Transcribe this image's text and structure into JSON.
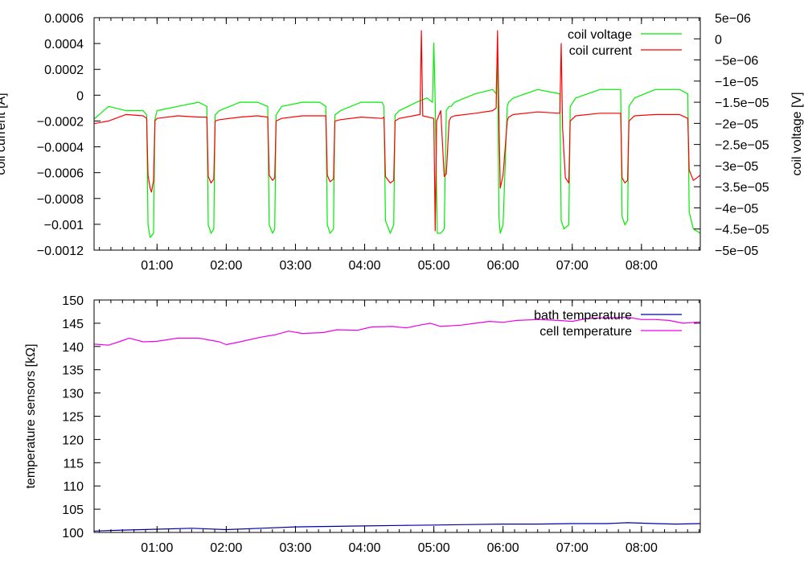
{
  "chart_data": [
    {
      "type": "line",
      "ylabel": "coil current [A]",
      "y2label": "coil voltage [V]",
      "xlim": [
        0.09,
        8.85
      ],
      "ylim": [
        -0.0012,
        0.0006
      ],
      "y2lim": [
        -5e-05,
        5e-06
      ],
      "grid": false,
      "legend_position": "top-right",
      "x_ticks": [
        1,
        2,
        3,
        4,
        5,
        6,
        7,
        8
      ],
      "x_tick_labels": [
        "01:00",
        "02:00",
        "03:00",
        "04:00",
        "05:00",
        "06:00",
        "07:00",
        "08:00"
      ],
      "y_ticks": [
        0.0006,
        0.0004,
        0.0002,
        0,
        -0.0002,
        -0.0004,
        -0.0006,
        -0.0008,
        -0.001,
        -0.0012
      ],
      "y_tick_labels": [
        "0.0006",
        "0.0004",
        "0.0002",
        "0",
        "−0.0002",
        "−0.0004",
        "−0.0006",
        "−0.0008",
        "−0.001",
        "−0.0012"
      ],
      "y2_ticks": [
        5e-06,
        0,
        -5e-06,
        -1e-05,
        -1.5e-05,
        -2e-05,
        -2.5e-05,
        -3e-05,
        -3.5e-05,
        -4e-05,
        -4.5e-05,
        -5e-05
      ],
      "y2_tick_labels": [
        "5e−06",
        "0",
        "−5e−06",
        "−1e−05",
        "−1.5e−05",
        "−2e−05",
        "−2.5e−05",
        "−3e−05",
        "−3.5e−05",
        "−4e−05",
        "−4.5e−05",
        "−5e−05"
      ],
      "series": [
        {
          "name": "coil voltage",
          "color": "#00ee00",
          "axis": "y2",
          "x": [
            0.09,
            0.3,
            0.55,
            0.8,
            0.85,
            0.87,
            0.9,
            0.95,
            0.97,
            1.0,
            1.3,
            1.6,
            1.72,
            1.74,
            1.78,
            1.82,
            1.84,
            1.9,
            2.2,
            2.45,
            2.6,
            2.62,
            2.67,
            2.7,
            2.72,
            2.8,
            3.1,
            3.35,
            3.44,
            3.46,
            3.5,
            3.55,
            3.57,
            3.65,
            3.95,
            4.25,
            4.28,
            4.3,
            4.37,
            4.42,
            4.44,
            4.5,
            4.75,
            4.9,
            4.98,
            5.0,
            5.02,
            5.05,
            5.1,
            5.15,
            5.18,
            5.22,
            5.25,
            5.3,
            5.6,
            5.85,
            5.9,
            5.92,
            5.94,
            5.96,
            6.0,
            6.06,
            6.08,
            6.15,
            6.5,
            6.82,
            6.84,
            6.88,
            6.95,
            6.97,
            7.05,
            7.4,
            7.7,
            7.72,
            7.76,
            7.8,
            7.82,
            7.9,
            8.2,
            8.55,
            8.67,
            8.69,
            8.75,
            8.85
          ],
          "values": [
            -1.9e-05,
            -1.6e-05,
            -1.7e-05,
            -1.7e-05,
            -1.8e-05,
            -4.4e-05,
            -4.7e-05,
            -4.6e-05,
            -1.9e-05,
            -1.7e-05,
            -1.6e-05,
            -1.5e-05,
            -1.6e-05,
            -4.4e-05,
            -4.6e-05,
            -4.5e-05,
            -1.8e-05,
            -1.7e-05,
            -1.5e-05,
            -1.5e-05,
            -1.6e-05,
            -4.4e-05,
            -4.6e-05,
            -4.5e-05,
            -1.8e-05,
            -1.6e-05,
            -1.5e-05,
            -1.5e-05,
            -1.6e-05,
            -4.4e-05,
            -4.6e-05,
            -4.5e-05,
            -1.8e-05,
            -1.7e-05,
            -1.5e-05,
            -1.5e-05,
            -1.6e-05,
            -4.3e-05,
            -4.6e-05,
            -4.4e-05,
            -1.8e-05,
            -1.7e-05,
            -1.5e-05,
            -1.4e-05,
            -1.5e-05,
            -1e-06,
            -1.5e-05,
            -4.6e-05,
            -4.6e-05,
            -4.5e-05,
            -1.7e-05,
            -1.6e-05,
            -1.6e-05,
            -1.5e-05,
            -1.3e-05,
            -1.2e-05,
            -1.3e-05,
            -2e-06,
            -4.2e-05,
            -4.6e-05,
            -4.4e-05,
            -1.6e-05,
            -1.5e-05,
            -1.4e-05,
            -1.2e-05,
            -1.3e-05,
            -4.3e-05,
            -4.5e-05,
            -4.4e-05,
            -1.6e-05,
            -1.4e-05,
            -1.2e-05,
            -1.2e-05,
            -4.2e-05,
            -4.4e-05,
            -4.3e-05,
            -1.6e-05,
            -1.4e-05,
            -1.2e-05,
            -1.2e-05,
            -1.3e-05,
            -4.1e-05,
            -4.5e-05,
            -4.6e-05
          ]
        },
        {
          "name": "coil current",
          "color": "#ff0000",
          "axis": "y",
          "x": [
            0.09,
            0.3,
            0.55,
            0.8,
            0.85,
            0.87,
            0.9,
            0.92,
            0.95,
            0.97,
            1.0,
            1.3,
            1.6,
            1.72,
            1.74,
            1.78,
            1.82,
            1.84,
            1.9,
            2.2,
            2.45,
            2.6,
            2.62,
            2.67,
            2.7,
            2.72,
            2.8,
            3.1,
            3.35,
            3.44,
            3.46,
            3.5,
            3.55,
            3.57,
            3.65,
            3.95,
            4.25,
            4.28,
            4.3,
            4.37,
            4.42,
            4.44,
            4.5,
            4.8,
            4.82,
            4.84,
            5.0,
            5.02,
            5.04,
            5.1,
            5.15,
            5.18,
            5.22,
            5.25,
            5.3,
            5.6,
            5.85,
            5.9,
            5.92,
            5.94,
            5.96,
            6.0,
            6.06,
            6.08,
            6.15,
            6.5,
            6.82,
            6.84,
            6.86,
            6.9,
            6.95,
            6.97,
            7.05,
            7.4,
            7.7,
            7.72,
            7.76,
            7.8,
            7.82,
            7.9,
            8.2,
            8.55,
            8.67,
            8.69,
            8.75,
            8.85
          ],
          "values": [
            -0.00022,
            -0.0002,
            -0.00015,
            -0.00016,
            -0.00018,
            -0.00062,
            -0.00072,
            -0.00075,
            -0.00066,
            -0.0002,
            -0.00018,
            -0.00016,
            -0.00017,
            -0.00017,
            -0.00063,
            -0.00068,
            -0.00065,
            -0.0002,
            -0.00019,
            -0.00017,
            -0.00016,
            -0.00017,
            -0.00062,
            -0.00066,
            -0.00064,
            -0.0002,
            -0.00018,
            -0.00016,
            -0.00016,
            -0.00016,
            -0.00062,
            -0.00067,
            -0.00065,
            -0.0002,
            -0.00019,
            -0.00017,
            -0.00018,
            -0.00017,
            -0.00063,
            -0.00068,
            -0.00066,
            -0.0002,
            -0.00018,
            -0.00015,
            0.0005,
            -0.00016,
            -0.00018,
            -0.00105,
            -0.0002,
            -0.00012,
            -0.00063,
            -0.00061,
            -0.0002,
            -0.00017,
            -0.00016,
            -0.00014,
            -0.00012,
            -0.0001,
            0.0005,
            -0.00015,
            -0.00072,
            -0.00062,
            -0.0002,
            -0.00017,
            -0.00015,
            -0.00013,
            -0.00014,
            0.0004,
            -0.00025,
            -0.00064,
            -0.00068,
            -0.0002,
            -0.00016,
            -0.00014,
            -0.00014,
            -0.00064,
            -0.00068,
            -0.00066,
            -0.0002,
            -0.00016,
            -0.00015,
            -0.00015,
            -0.00018,
            -0.00058,
            -0.00066,
            -0.00062
          ]
        }
      ]
    },
    {
      "type": "line",
      "ylabel": "temperature sensors [kΩ]",
      "xlim": [
        0.09,
        8.85
      ],
      "ylim": [
        100,
        150
      ],
      "grid": false,
      "legend_position": "top-right",
      "x_ticks": [
        1,
        2,
        3,
        4,
        5,
        6,
        7,
        8
      ],
      "x_tick_labels": [
        "01:00",
        "02:00",
        "03:00",
        "04:00",
        "05:00",
        "06:00",
        "07:00",
        "08:00"
      ],
      "y_ticks": [
        150,
        145,
        140,
        135,
        130,
        125,
        120,
        115,
        110,
        105,
        100
      ],
      "y_tick_labels": [
        "150",
        "145",
        "140",
        "135",
        "130",
        "125",
        "120",
        "115",
        "110",
        "105",
        "100"
      ],
      "series": [
        {
          "name": "bath temperature",
          "color": "#0000aa",
          "x": [
            0.09,
            0.5,
            1.0,
            1.5,
            2.0,
            2.5,
            3.0,
            3.5,
            4.0,
            4.5,
            5.0,
            5.5,
            6.0,
            6.5,
            7.0,
            7.5,
            7.8,
            8.2,
            8.5,
            8.85
          ],
          "values": [
            100.3,
            100.5,
            100.7,
            100.9,
            100.6,
            100.9,
            101.2,
            101.3,
            101.4,
            101.5,
            101.6,
            101.7,
            101.8,
            101.8,
            101.9,
            101.9,
            102.1,
            101.9,
            101.8,
            101.9
          ]
        },
        {
          "name": "cell temperature",
          "color": "#ee00ee",
          "x": [
            0.09,
            0.3,
            0.45,
            0.6,
            0.8,
            1.0,
            1.3,
            1.6,
            1.9,
            2.0,
            2.2,
            2.5,
            2.7,
            2.9,
            3.1,
            3.4,
            3.6,
            3.9,
            4.1,
            4.4,
            4.6,
            4.8,
            4.95,
            5.1,
            5.4,
            5.6,
            5.8,
            6.0,
            6.2,
            6.5,
            6.8,
            7.0,
            7.2,
            7.5,
            7.8,
            8.0,
            8.2,
            8.4,
            8.6,
            8.85
          ],
          "values": [
            140.5,
            140.3,
            141.0,
            141.8,
            141.0,
            141.1,
            141.8,
            141.8,
            141.0,
            140.4,
            141.0,
            142.0,
            142.5,
            143.3,
            142.8,
            143.0,
            143.6,
            143.5,
            144.2,
            144.3,
            144.0,
            144.6,
            145.0,
            144.3,
            144.6,
            145.0,
            145.4,
            145.2,
            145.6,
            145.8,
            145.6,
            145.4,
            146.0,
            146.2,
            146.3,
            145.8,
            145.8,
            145.6,
            145.0,
            145.3
          ]
        }
      ]
    }
  ]
}
